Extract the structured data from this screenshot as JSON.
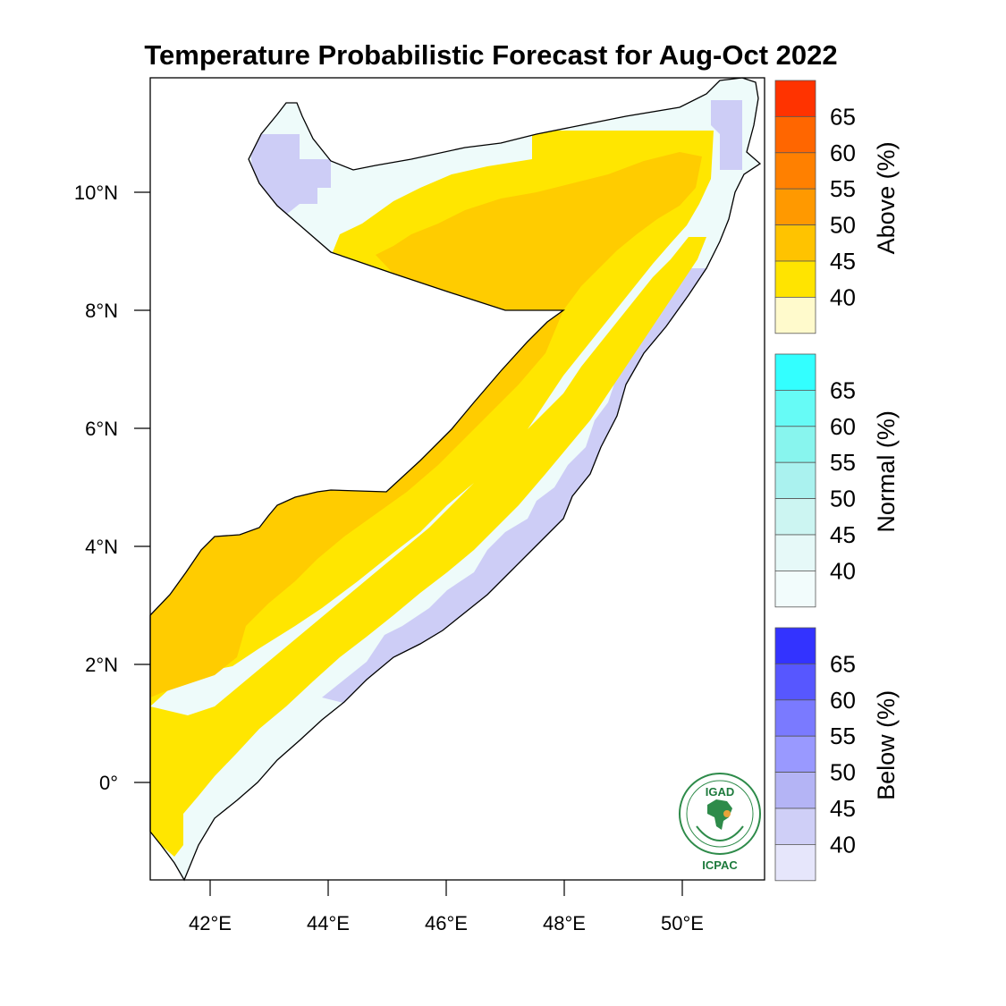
{
  "title": "Temperature Probabilistic Forecast for Aug-Oct 2022",
  "lat_ticks": [
    "10°N",
    "8°N",
    "6°N",
    "4°N",
    "2°N",
    "0°"
  ],
  "lon_ticks": [
    "42°E",
    "44°E",
    "46°E",
    "48°E",
    "50°E"
  ],
  "colorbars": [
    {
      "title": "Above (%)",
      "levels": [
        "65",
        "60",
        "55",
        "50",
        "45",
        "40"
      ],
      "colors": [
        "#ff3300",
        "#ff6600",
        "#ff8000",
        "#ff9900",
        "#ffc300",
        "#ffe400",
        "#fffacc"
      ]
    },
    {
      "title": "Normal (%)",
      "levels": [
        "65",
        "60",
        "55",
        "50",
        "45",
        "40"
      ],
      "colors": [
        "#33ffff",
        "#66fbf6",
        "#88f5ee",
        "#aaf2ef",
        "#ccf5f2",
        "#e6f9f8",
        "#f2fcfc"
      ]
    },
    {
      "title": "Below (%)",
      "levels": [
        "65",
        "60",
        "55",
        "50",
        "45",
        "40"
      ],
      "colors": [
        "#3333ff",
        "#5757ff",
        "#7a7aff",
        "#9999ff",
        "#b4b4f5",
        "#cfcff7",
        "#e6e6fb"
      ]
    }
  ],
  "logo": {
    "top_text": "IGAD",
    "bottom_text": "ICPAC"
  },
  "region_colors": {
    "above_45": "#ffcc00",
    "above_40": "#ffe600",
    "normal_40": "#eefbfa",
    "below_40": "#cdcdf6",
    "below_45": "#b8b8f2"
  }
}
